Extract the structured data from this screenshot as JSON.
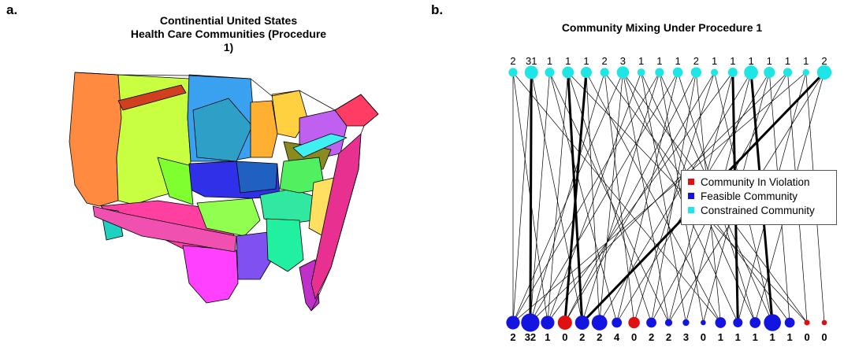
{
  "panel_a": {
    "letter": "a.",
    "title_line1": "Continential United States",
    "title_line2": "Health Care Communities (Procedure 1)"
  },
  "panel_b": {
    "letter": "b.",
    "title": "Community Mixing Under Procedure 1"
  },
  "colors": {
    "constrained": "#1ee6e6",
    "feasible": "#1414e0",
    "violation": "#e01010"
  },
  "chart_data": [
    {
      "type": "map",
      "title": "Continential United States Health Care Communities (Procedure 1)"
    },
    {
      "type": "network",
      "title": "Community Mixing Under Procedure 1",
      "legend": {
        "position": "right",
        "entries": [
          {
            "label": "Community In Violation",
            "status": "violation"
          },
          {
            "label": "Feasible Community",
            "status": "feasible"
          },
          {
            "label": "Constrained Community",
            "status": "constrained"
          }
        ]
      },
      "top_nodes": {
        "status": "constrained",
        "labels": [
          "2",
          "31",
          "1",
          "1",
          "1",
          "2",
          "3",
          "1",
          "1",
          "1",
          "2",
          "1",
          "1",
          "1",
          "1",
          "1",
          "1",
          "2"
        ],
        "sizes": [
          1.0,
          1.8,
          1.1,
          1.5,
          1.4,
          1.0,
          1.6,
          0.8,
          1.0,
          1.2,
          1.3,
          0.7,
          1.1,
          1.9,
          1.4,
          1.0,
          0.6,
          2.0
        ]
      },
      "bottom_nodes": {
        "labels": [
          "2",
          "32",
          "1",
          "0",
          "2",
          "2",
          "4",
          "0",
          "2",
          "2",
          "3",
          "0",
          "1",
          "1",
          "1",
          "1",
          "1",
          "0",
          "0"
        ],
        "statuses": [
          "feasible",
          "feasible",
          "feasible",
          "violation",
          "feasible",
          "feasible",
          "feasible",
          "violation",
          "feasible",
          "feasible",
          "feasible",
          "feasible",
          "feasible",
          "feasible",
          "feasible",
          "feasible",
          "feasible",
          "violation",
          "violation"
        ],
        "sizes": [
          1.5,
          2.2,
          1.5,
          1.6,
          1.6,
          1.8,
          1.0,
          1.2,
          1.0,
          0.6,
          0.5,
          0.3,
          1.1,
          0.9,
          1.1,
          2.0,
          1.0,
          0.35,
          0.3
        ]
      },
      "edges": [
        [
          0,
          0,
          1
        ],
        [
          0,
          2,
          1
        ],
        [
          1,
          1,
          3
        ],
        [
          1,
          0,
          1
        ],
        [
          1,
          4,
          1
        ],
        [
          2,
          1,
          1
        ],
        [
          2,
          6,
          1
        ],
        [
          3,
          4,
          3
        ],
        [
          3,
          2,
          1
        ],
        [
          3,
          8,
          1
        ],
        [
          4,
          3,
          3
        ],
        [
          4,
          5,
          1
        ],
        [
          4,
          12,
          1
        ],
        [
          5,
          7,
          1
        ],
        [
          5,
          1,
          1
        ],
        [
          6,
          5,
          1
        ],
        [
          6,
          9,
          1
        ],
        [
          6,
          0,
          1
        ],
        [
          6,
          13,
          1
        ],
        [
          7,
          10,
          1
        ],
        [
          7,
          2,
          1
        ],
        [
          8,
          11,
          1
        ],
        [
          8,
          4,
          1
        ],
        [
          8,
          15,
          1
        ],
        [
          9,
          6,
          1
        ],
        [
          9,
          14,
          1
        ],
        [
          9,
          1,
          1
        ],
        [
          10,
          8,
          1
        ],
        [
          10,
          12,
          1
        ],
        [
          10,
          3,
          1
        ],
        [
          11,
          15,
          1
        ],
        [
          11,
          7,
          1
        ],
        [
          12,
          13,
          3
        ],
        [
          12,
          9,
          1
        ],
        [
          12,
          2,
          1
        ],
        [
          13,
          15,
          3
        ],
        [
          13,
          5,
          1
        ],
        [
          13,
          10,
          1
        ],
        [
          14,
          16,
          1
        ],
        [
          14,
          6,
          1
        ],
        [
          14,
          11,
          1
        ],
        [
          15,
          17,
          1
        ],
        [
          15,
          8,
          1
        ],
        [
          15,
          1,
          1
        ],
        [
          16,
          18,
          1
        ],
        [
          16,
          0,
          1
        ],
        [
          17,
          4,
          3
        ],
        [
          17,
          14,
          1
        ],
        [
          17,
          9,
          1
        ],
        [
          0,
          12,
          1
        ],
        [
          2,
          9,
          1
        ],
        [
          5,
          16,
          1
        ],
        [
          7,
          14,
          1
        ],
        [
          11,
          3,
          1
        ],
        [
          16,
          13,
          1
        ],
        [
          3,
          17,
          1
        ],
        [
          8,
          0,
          1
        ],
        [
          6,
          17,
          1
        ]
      ]
    }
  ]
}
